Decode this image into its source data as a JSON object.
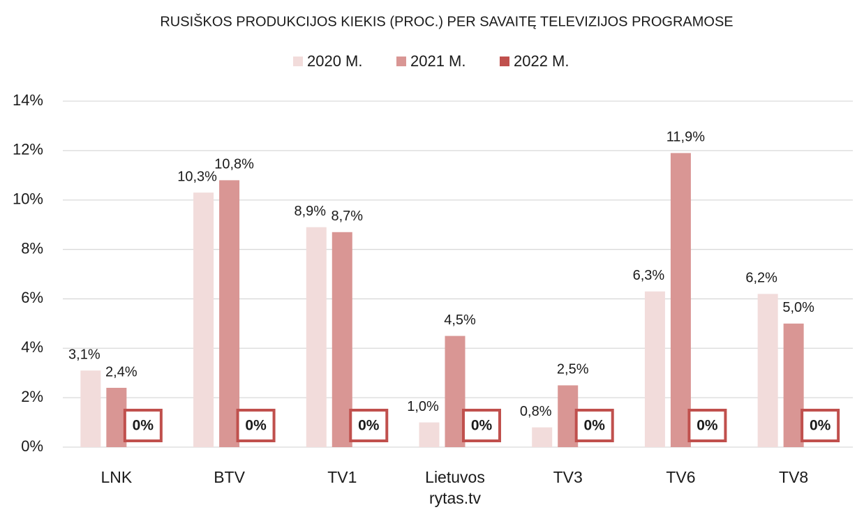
{
  "chart_data": {
    "type": "bar",
    "title": "RUSIŠKOS PRODUKCIJOS KIEKIS (PROC.) PER SAVAITĘ TELEVIZIJOS PROGRAMOSE",
    "categories": [
      "LNK",
      "BTV",
      "TV1",
      "Lietuvos rytas.tv",
      "TV3",
      "TV6",
      "TV8"
    ],
    "series": [
      {
        "name": "2020 M.",
        "color": "#f2dcdb",
        "values": [
          3.1,
          10.3,
          8.9,
          1.0,
          0.8,
          6.3,
          6.2
        ],
        "value_labels": [
          "3,1%",
          "10,3%",
          "8,9%",
          "1,0%",
          "0,8%",
          "6,3%",
          "6,2%"
        ]
      },
      {
        "name": "2021 M.",
        "color": "#d99694",
        "values": [
          2.4,
          10.8,
          8.7,
          4.5,
          2.5,
          11.9,
          5.0
        ],
        "value_labels": [
          "2,4%",
          "10,8%",
          "8,7%",
          "4,5%",
          "2,5%",
          "11,9%",
          "5,0%"
        ]
      },
      {
        "name": "2022 M.",
        "color": "#c0504d",
        "values": [
          0,
          0,
          0,
          0,
          0,
          0,
          0
        ],
        "value_labels": [
          "0%",
          "0%",
          "0%",
          "0%",
          "0%",
          "0%",
          "0%"
        ]
      }
    ],
    "ylim": [
      0,
      14
    ],
    "yticks": [
      {
        "value": 0,
        "label": "0%"
      },
      {
        "value": 2,
        "label": "2%"
      },
      {
        "value": 4,
        "label": "4%"
      },
      {
        "value": 6,
        "label": "6%"
      },
      {
        "value": 8,
        "label": "8%"
      },
      {
        "value": 10,
        "label": "10%"
      },
      {
        "value": 12,
        "label": "12%"
      },
      {
        "value": 14,
        "label": "14%"
      }
    ],
    "grid": true,
    "legend": "top"
  }
}
